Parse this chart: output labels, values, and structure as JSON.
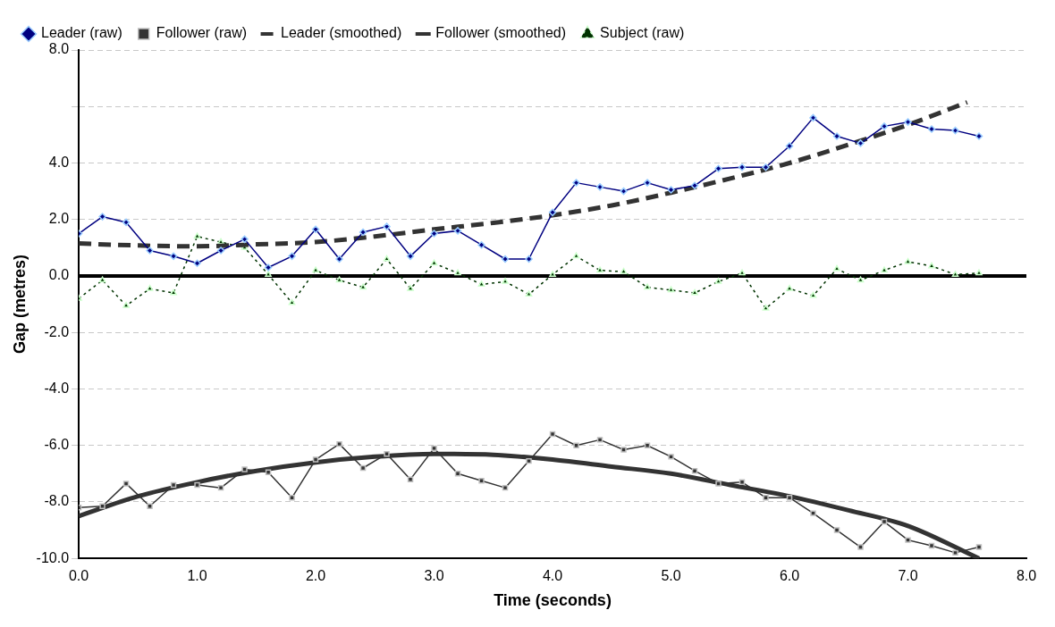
{
  "chart_data": {
    "type": "line",
    "xlabel": "Time (seconds)",
    "ylabel": "Gap (metres)",
    "xlim": [
      0,
      8
    ],
    "xticks": [
      {
        "value": 0,
        "label": "0.0"
      },
      {
        "value": 1,
        "label": "1.0"
      },
      {
        "value": 2,
        "label": "2.0"
      },
      {
        "value": 3,
        "label": "3.0"
      },
      {
        "value": 4,
        "label": "4.0"
      },
      {
        "value": 5,
        "label": "5.0"
      },
      {
        "value": 6,
        "label": "6.0"
      },
      {
        "value": 7,
        "label": "7.0"
      },
      {
        "value": 8,
        "label": "8.0"
      }
    ],
    "ylim": [
      -10,
      8
    ],
    "yticks": [
      {
        "value": -10,
        "label": "-10.0"
      },
      {
        "value": -8,
        "label": "-8.0"
      },
      {
        "value": -6,
        "label": "-6.0"
      },
      {
        "value": -4,
        "label": "-4.0"
      },
      {
        "value": -2,
        "label": "-2.0"
      },
      {
        "value": 0,
        "label": "0.0"
      },
      {
        "value": 2,
        "label": "2.0"
      },
      {
        "value": 4,
        "label": "4.0"
      },
      {
        "value": 6,
        "label": null
      },
      {
        "value": 8,
        "label": "8.0"
      }
    ],
    "grid": "y",
    "legend": "top left",
    "x": [
      0,
      0.2,
      0.4,
      0.6,
      0.8,
      1.0,
      1.2,
      1.4,
      1.6,
      1.8,
      2.0,
      2.2,
      2.4,
      2.6,
      2.8,
      3.0,
      3.2,
      3.4,
      3.6,
      3.8,
      4.0,
      4.2,
      4.4,
      4.6,
      4.8,
      5.0,
      5.2,
      5.4,
      5.6,
      5.8,
      6.0,
      6.2,
      6.4,
      6.6,
      6.8,
      7.0,
      7.2,
      7.4,
      7.6
    ],
    "series": [
      {
        "name": "Leader (raw)",
        "color": "#000080",
        "marker": "diamond",
        "line_style": "solid",
        "values": [
          1.5,
          2.1,
          1.9,
          0.9,
          0.7,
          0.45,
          0.9,
          1.3,
          0.3,
          0.7,
          1.65,
          0.6,
          1.55,
          1.75,
          0.7,
          1.5,
          1.6,
          1.1,
          0.6,
          0.6,
          2.25,
          3.3,
          3.15,
          3.0,
          3.3,
          3.05,
          3.2,
          3.8,
          3.85,
          3.85,
          4.6,
          5.6,
          4.95,
          4.7,
          5.3,
          5.45,
          5.2,
          5.15,
          4.95
        ]
      },
      {
        "name": "Follower (raw)",
        "color": "#333333",
        "marker": "square",
        "line_style": "solid",
        "values": [
          -8.2,
          -8.15,
          -7.35,
          -8.15,
          -7.4,
          -7.4,
          -7.5,
          -6.85,
          -6.95,
          -7.85,
          -6.5,
          -5.95,
          -6.8,
          -6.3,
          -7.2,
          -6.1,
          -7.0,
          -7.25,
          -7.5,
          -6.55,
          -5.6,
          -6.0,
          -5.8,
          -6.15,
          -6.0,
          -6.4,
          -6.9,
          -7.35,
          -7.3,
          -7.85,
          -7.85,
          -8.4,
          -9.0,
          -9.6,
          -8.7,
          -9.35,
          -9.55,
          -9.8,
          -9.6
        ]
      },
      {
        "name": "Leader (smoothed)",
        "color": "#333333",
        "marker": "none",
        "line_style": "dashed",
        "x": [
          0,
          0.5,
          1,
          1.5,
          2,
          2.5,
          3,
          3.5,
          4,
          4.5,
          5,
          5.5,
          6,
          6.5,
          7,
          7.5
        ],
        "values": [
          1.15,
          1.08,
          1.05,
          1.12,
          1.2,
          1.4,
          1.65,
          1.88,
          2.15,
          2.5,
          2.95,
          3.45,
          4.0,
          4.65,
          5.35,
          6.15
        ]
      },
      {
        "name": "Follower (smoothed)",
        "color": "#333333",
        "marker": "none",
        "line_style": "solid",
        "x": [
          0,
          0.5,
          1,
          1.5,
          2,
          2.5,
          3,
          3.5,
          4,
          4.5,
          5,
          5.5,
          6,
          6.5,
          7,
          7.6
        ],
        "values": [
          -8.5,
          -7.8,
          -7.3,
          -6.9,
          -6.6,
          -6.4,
          -6.3,
          -6.33,
          -6.5,
          -6.75,
          -7.0,
          -7.4,
          -7.8,
          -8.3,
          -8.85,
          -10.0
        ]
      },
      {
        "name": "Subject (raw)",
        "color": "#003300",
        "marker": "triangle",
        "line_style": "dotted",
        "values": [
          -0.8,
          -0.15,
          -1.05,
          -0.45,
          -0.6,
          1.4,
          1.2,
          1.0,
          0.05,
          -0.95,
          0.2,
          -0.15,
          -0.4,
          0.6,
          -0.45,
          0.45,
          0.1,
          -0.3,
          -0.2,
          -0.65,
          0.05,
          0.7,
          0.2,
          0.15,
          -0.4,
          -0.5,
          -0.6,
          -0.2,
          0.1,
          -1.15,
          -0.45,
          -0.7,
          0.25,
          -0.15,
          0.2,
          0.5,
          0.35,
          0.05,
          0.1
        ]
      }
    ]
  }
}
